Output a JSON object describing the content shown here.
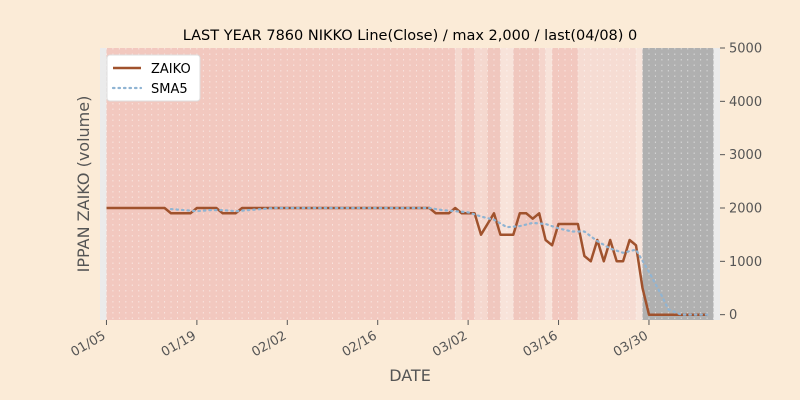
{
  "chart_data": {
    "type": "line",
    "title": "LAST YEAR 7860 NIKKO Line(Close) / max 2,000 / last(04/08) 0",
    "xlabel": "DATE",
    "ylabel": "IPPAN ZAIKO (volume)",
    "ylim": [
      -100,
      5000
    ],
    "yticks": [
      0,
      1000,
      2000,
      3000,
      4000,
      5000
    ],
    "ytick_labels": [
      "0",
      "1000",
      "2000",
      "3000",
      "4000",
      "5000"
    ],
    "xticks": [
      "01-05",
      "01-19",
      "02-02",
      "02-16",
      "03-02",
      "03-16",
      "03-30"
    ],
    "xtick_labels": [
      "01/05",
      "01/19",
      "02/02",
      "02/16",
      "03/02",
      "03/16",
      "03/30"
    ],
    "x_range": [
      "01-04",
      "04-10"
    ],
    "y_axis_side": "right",
    "grid": true,
    "legend": "top-left",
    "series": [
      {
        "name": "ZAIKO",
        "color": "#a0522d",
        "style": "solid",
        "points": [
          [
            "01-05",
            2000
          ],
          [
            "01-06",
            2000
          ],
          [
            "01-07",
            2000
          ],
          [
            "01-08",
            2000
          ],
          [
            "01-09",
            2000
          ],
          [
            "01-10",
            2000
          ],
          [
            "01-11",
            2000
          ],
          [
            "01-12",
            2000
          ],
          [
            "01-13",
            2000
          ],
          [
            "01-14",
            2000
          ],
          [
            "01-15",
            1900
          ],
          [
            "01-16",
            1900
          ],
          [
            "01-17",
            1900
          ],
          [
            "01-18",
            1900
          ],
          [
            "01-19",
            2000
          ],
          [
            "01-20",
            2000
          ],
          [
            "01-21",
            2000
          ],
          [
            "01-22",
            2000
          ],
          [
            "01-23",
            1900
          ],
          [
            "01-24",
            1900
          ],
          [
            "01-25",
            1900
          ],
          [
            "01-26",
            2000
          ],
          [
            "01-27",
            2000
          ],
          [
            "01-28",
            2000
          ],
          [
            "01-29",
            2000
          ],
          [
            "01-30",
            2000
          ],
          [
            "01-31",
            2000
          ],
          [
            "02-01",
            2000
          ],
          [
            "02-02",
            2000
          ],
          [
            "02-03",
            2000
          ],
          [
            "02-04",
            2000
          ],
          [
            "02-05",
            2000
          ],
          [
            "02-06",
            2000
          ],
          [
            "02-07",
            2000
          ],
          [
            "02-08",
            2000
          ],
          [
            "02-09",
            2000
          ],
          [
            "02-10",
            2000
          ],
          [
            "02-11",
            2000
          ],
          [
            "02-12",
            2000
          ],
          [
            "02-13",
            2000
          ],
          [
            "02-14",
            2000
          ],
          [
            "02-15",
            2000
          ],
          [
            "02-16",
            2000
          ],
          [
            "02-17",
            2000
          ],
          [
            "02-18",
            2000
          ],
          [
            "02-19",
            2000
          ],
          [
            "02-20",
            2000
          ],
          [
            "02-21",
            2000
          ],
          [
            "02-22",
            2000
          ],
          [
            "02-23",
            2000
          ],
          [
            "02-24",
            2000
          ],
          [
            "02-25",
            1900
          ],
          [
            "02-26",
            1900
          ],
          [
            "02-27",
            1900
          ],
          [
            "02-28",
            2000
          ],
          [
            "03-01",
            1900
          ],
          [
            "03-02",
            1900
          ],
          [
            "03-03",
            1900
          ],
          [
            "03-04",
            1500
          ],
          [
            "03-05",
            1700
          ],
          [
            "03-06",
            1900
          ],
          [
            "03-07",
            1500
          ],
          [
            "03-08",
            1500
          ],
          [
            "03-09",
            1500
          ],
          [
            "03-10",
            1900
          ],
          [
            "03-11",
            1900
          ],
          [
            "03-12",
            1800
          ],
          [
            "03-13",
            1900
          ],
          [
            "03-14",
            1400
          ],
          [
            "03-15",
            1300
          ],
          [
            "03-16",
            1700
          ],
          [
            "03-17",
            1700
          ],
          [
            "03-18",
            1700
          ],
          [
            "03-19",
            1700
          ],
          [
            "03-20",
            1100
          ],
          [
            "03-21",
            1000
          ],
          [
            "03-22",
            1400
          ],
          [
            "03-23",
            1000
          ],
          [
            "03-24",
            1400
          ],
          [
            "03-25",
            1000
          ],
          [
            "03-26",
            1000
          ],
          [
            "03-27",
            1400
          ],
          [
            "03-28",
            1300
          ],
          [
            "03-29",
            500
          ],
          [
            "03-30",
            0
          ],
          [
            "03-31",
            0
          ],
          [
            "04-01",
            0
          ],
          [
            "04-02",
            0
          ],
          [
            "04-03",
            0
          ],
          [
            "04-04",
            0
          ],
          [
            "04-05",
            0
          ],
          [
            "04-06",
            0
          ],
          [
            "04-07",
            0
          ],
          [
            "04-08",
            0
          ]
        ]
      },
      {
        "name": "SMA5",
        "color": "#8fb4d3",
        "style": "dotted",
        "points": [
          [
            "01-15",
            1980
          ],
          [
            "01-17",
            1960
          ],
          [
            "01-19",
            1940
          ],
          [
            "01-21",
            1960
          ],
          [
            "01-23",
            1960
          ],
          [
            "01-25",
            1940
          ],
          [
            "01-27",
            1960
          ],
          [
            "01-29",
            1980
          ],
          [
            "01-31",
            2000
          ],
          [
            "02-05",
            2000
          ],
          [
            "02-15",
            2000
          ],
          [
            "02-24",
            2000
          ],
          [
            "02-26",
            1960
          ],
          [
            "02-28",
            1940
          ],
          [
            "03-02",
            1920
          ],
          [
            "03-04",
            1840
          ],
          [
            "03-06",
            1780
          ],
          [
            "03-08",
            1640
          ],
          [
            "03-10",
            1660
          ],
          [
            "03-12",
            1720
          ],
          [
            "03-14",
            1700
          ],
          [
            "03-16",
            1620
          ],
          [
            "03-18",
            1560
          ],
          [
            "03-20",
            1560
          ],
          [
            "03-22",
            1380
          ],
          [
            "03-24",
            1240
          ],
          [
            "03-26",
            1160
          ],
          [
            "03-28",
            1220
          ],
          [
            "03-30",
            800
          ],
          [
            "04-01",
            350
          ],
          [
            "04-02",
            100
          ],
          [
            "04-04",
            0
          ],
          [
            "04-06",
            0
          ],
          [
            "04-08",
            0
          ]
        ]
      }
    ],
    "bands": [
      {
        "from": "01-05",
        "to": "02-28",
        "color": "#f2c8bf"
      },
      {
        "from": "02-28",
        "to": "03-01",
        "color": "#f5d8cf"
      },
      {
        "from": "03-01",
        "to": "03-03",
        "color": "#f2c8bf"
      },
      {
        "from": "03-03",
        "to": "03-05",
        "color": "#f5d8cf"
      },
      {
        "from": "03-05",
        "to": "03-07",
        "color": "#f0c7be"
      },
      {
        "from": "03-07",
        "to": "03-09",
        "color": "#f8e3da"
      },
      {
        "from": "03-09",
        "to": "03-13",
        "color": "#f0c7be"
      },
      {
        "from": "03-13",
        "to": "03-14",
        "color": "#f5d5cc"
      },
      {
        "from": "03-14",
        "to": "03-15",
        "color": "#f8e3da"
      },
      {
        "from": "03-15",
        "to": "03-19",
        "color": "#f2c8bf"
      },
      {
        "from": "03-19",
        "to": "03-28",
        "color": "#f6dcd3"
      },
      {
        "from": "03-28",
        "to": "03-29",
        "color": "#f8e5dc"
      },
      {
        "from": "03-29",
        "to": "04-09",
        "color": "#b0b0b0"
      }
    ]
  }
}
